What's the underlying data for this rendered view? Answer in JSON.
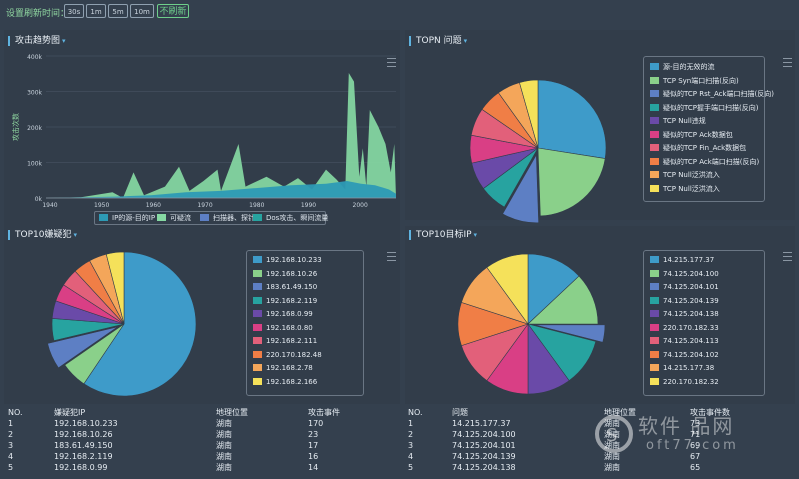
{
  "topbar": {
    "label": "设置刷新时间：",
    "interval_buttons": [
      "30s",
      "1m",
      "5m",
      "10m"
    ],
    "active_button": "不刷新"
  },
  "attack_trend": {
    "title": "攻击趋势图",
    "ylabel": "攻击次数",
    "ytick_labels": [
      "400k",
      "300k",
      "200k",
      "100k",
      "0k"
    ],
    "xtick_labels": [
      "1940",
      "1950",
      "1960",
      "1970",
      "1980",
      "1990",
      "2000"
    ],
    "legend": [
      "IP的源-目的IP",
      "可疑流",
      "扫描器、探针",
      "Dos攻击、瞬间流量"
    ],
    "colors": {
      "teal": "#2d9ab5",
      "green": "#86d9a3"
    }
  },
  "topn": {
    "title": "TOPN 问题",
    "legend": [
      "源-目的无效的流",
      "TCP Syn端口扫描(反向)",
      "疑似的TCP Rst_Ack端口扫描(反向)",
      "疑似的TCP握手端口扫描(反向)",
      "TCP Null违规",
      "疑似的TCP Ack数据包",
      "疑似的TCP Fin_Ack数据包",
      "疑似的TCP Ack端口扫描(反向)",
      "TCP Null泛洪流入",
      "TCP Null泛洪流入"
    ]
  },
  "top10_suspect": {
    "title": "TOP10嫌疑犯",
    "legend": [
      "192.168.10.233",
      "192.168.10.26",
      "183.61.49.150",
      "192.168.2.119",
      "192.168.0.99",
      "192.168.0.80",
      "192.168.2.111",
      "220.170.182.48",
      "192.168.2.78",
      "192.168.2.166"
    ],
    "table": {
      "headers": [
        "NO.",
        "嫌疑犯IP",
        "地理位置",
        "攻击事件"
      ],
      "rows": [
        [
          "1",
          "192.168.10.233",
          "湖南",
          "170"
        ],
        [
          "2",
          "192.168.10.26",
          "湖南",
          "23"
        ],
        [
          "3",
          "183.61.49.150",
          "湖南",
          "17"
        ],
        [
          "4",
          "192.168.2.119",
          "湖南",
          "16"
        ],
        [
          "5",
          "192.168.0.99",
          "湖南",
          "14"
        ]
      ]
    }
  },
  "top10_target": {
    "title": "TOP10目标IP",
    "legend": [
      "14.215.177.37",
      "74.125.204.100",
      "74.125.204.101",
      "74.125.204.139",
      "74.125.204.138",
      "220.170.182.33",
      "74.125.204.113",
      "74.125.204.102",
      "14.215.177.38",
      "220.170.182.32"
    ],
    "table": {
      "headers": [
        "NO.",
        "问题",
        "地理位置",
        "攻击事件数"
      ],
      "rows": [
        [
          "1",
          "14.215.177.37",
          "湖南",
          "73"
        ],
        [
          "2",
          "74.125.204.100",
          "湖南",
          "71"
        ],
        [
          "3",
          "74.125.204.101",
          "湖南",
          "69"
        ],
        [
          "4",
          "74.125.204.139",
          "湖南",
          "67"
        ],
        [
          "5",
          "74.125.204.138",
          "湖南",
          "65"
        ]
      ]
    }
  },
  "palette": [
    "#3e9bc9",
    "#8ad08a",
    "#5d7fc4",
    "#27a3a0",
    "#6a4aa8",
    "#d93f85",
    "#e2607a",
    "#f07e46",
    "#f4a65a",
    "#f5e15a"
  ],
  "watermark": {
    "brand": "软件 品网",
    "url": "oft77.com"
  }
}
